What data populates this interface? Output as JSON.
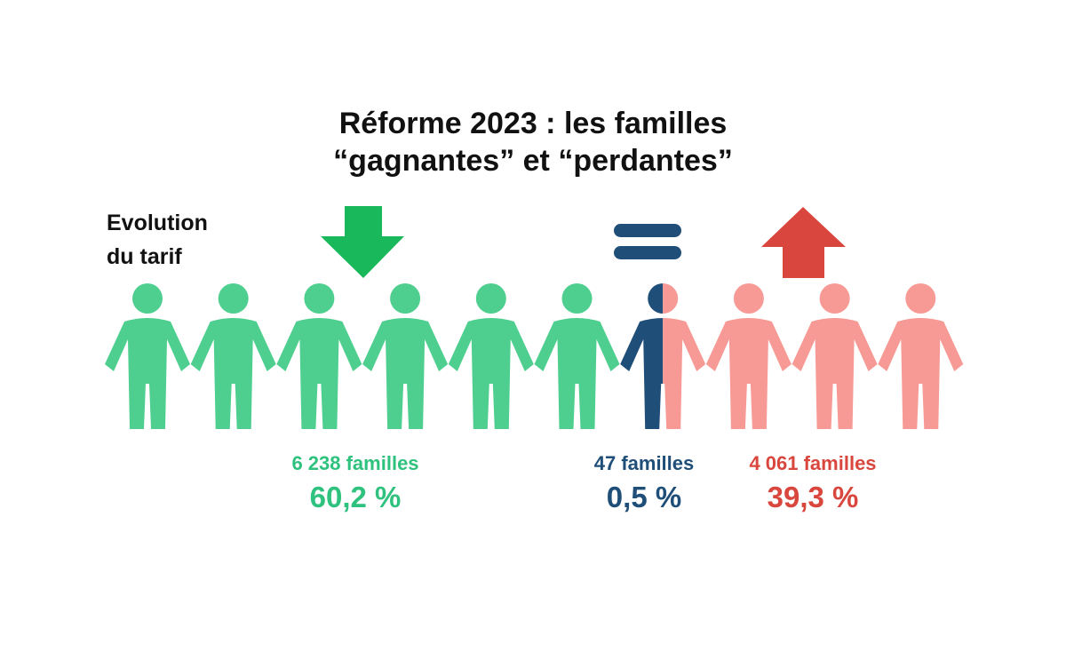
{
  "title": {
    "line1": "Réforme 2023 : les familles",
    "line2": "“gagnantes” et “perdantes”"
  },
  "side_label": {
    "line1": "Evolution",
    "line2": "du tarif"
  },
  "colors": {
    "down": "#4fcf8f",
    "down_arrow": "#19b85a",
    "equal": "#1f4e79",
    "up": "#f79a95",
    "up_arrow": "#d9463d",
    "down_text": "#2ec27e",
    "equal_text": "#1f4e79",
    "up_text": "#d9463d"
  },
  "icons": {
    "down": "arrow-down-icon",
    "equal": "equals-icon",
    "up": "arrow-up-icon",
    "person": "person-icon"
  },
  "chart_data": {
    "type": "pictogram",
    "total_icons": 10,
    "groups": [
      {
        "key": "down",
        "count": "6 238 familles",
        "value": 6238,
        "percent": 60.2,
        "percent_label": "60,2 %",
        "icons": 6
      },
      {
        "key": "equal",
        "count": "47 familles",
        "value": 47,
        "percent": 0.5,
        "percent_label": "0,5 %",
        "icons": 0.5
      },
      {
        "key": "up",
        "count": "4 061 familles",
        "value": 4061,
        "percent": 39.3,
        "percent_label": "39,3 %",
        "icons": 3.5
      }
    ]
  }
}
